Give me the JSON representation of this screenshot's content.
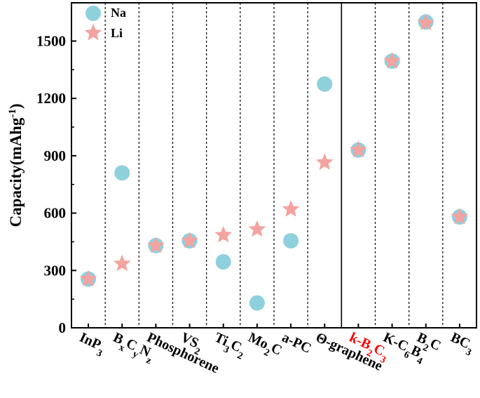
{
  "chart_data": {
    "type": "scatter",
    "ylabel": "Capacity(mAhg",
    "ylabel_sup": "-1",
    "ylabel_tail": ")",
    "ylim": [
      0,
      1700
    ],
    "yticks": [
      "0",
      "300",
      "600",
      "900",
      "1200",
      "1500"
    ],
    "ytick_values": [
      0,
      300,
      600,
      900,
      1200,
      1500
    ],
    "grid": false,
    "legend_position": "top-left",
    "categories": [
      {
        "parts": [
          {
            "t": "InP"
          },
          {
            "t": "3",
            "sub": true
          }
        ]
      },
      {
        "parts": [
          {
            "t": "B"
          },
          {
            "t": "x",
            "sub": true
          },
          {
            "t": "C"
          },
          {
            "t": "y",
            "sub": true
          },
          {
            "t": "N"
          },
          {
            "t": "z",
            "sub": true
          }
        ]
      },
      {
        "parts": [
          {
            "t": "Phosphorene"
          }
        ]
      },
      {
        "parts": [
          {
            "t": "VS"
          },
          {
            "t": "2",
            "sub": true
          }
        ]
      },
      {
        "parts": [
          {
            "t": "Ti"
          },
          {
            "t": "3",
            "sub": true
          },
          {
            "t": "C"
          },
          {
            "t": "2",
            "sub": true
          }
        ]
      },
      {
        "parts": [
          {
            "t": "Mo"
          },
          {
            "t": "2",
            "sub": true
          },
          {
            "t": "C"
          }
        ]
      },
      {
        "parts": [
          {
            "t": "a-PC"
          }
        ]
      },
      {
        "parts": [
          {
            "t": "Θ-graphene"
          }
        ]
      },
      {
        "parts": [
          {
            "t": "k-B"
          },
          {
            "t": "2",
            "sub": true
          },
          {
            "t": "C"
          },
          {
            "t": "3",
            "sub": true
          }
        ],
        "highlight": true
      },
      {
        "parts": [
          {
            "t": "K-C"
          },
          {
            "t": "6",
            "sub": true
          },
          {
            "t": "B"
          },
          {
            "t": "4",
            "sub": true
          }
        ]
      },
      {
        "parts": [
          {
            "t": "B"
          },
          {
            "t": "2",
            "sub": true
          },
          {
            "t": "C"
          }
        ]
      },
      {
        "parts": [
          {
            "t": "BC"
          },
          {
            "t": "3",
            "sub": true
          }
        ]
      }
    ],
    "separators": [
      "dashed",
      "dashed",
      "dashed",
      "dashed",
      "dashed",
      "dashed",
      "dashed",
      "solid",
      "dashed",
      "dashed",
      "dashed"
    ],
    "series": [
      {
        "name": "Na",
        "marker": "circle",
        "color": "#8fd0dd",
        "values": [
          255,
          810,
          430,
          455,
          345,
          130,
          455,
          1275,
          930,
          1395,
          1600,
          580
        ]
      },
      {
        "name": "Li",
        "marker": "star",
        "color": "#f3a3a0",
        "values": [
          255,
          335,
          430,
          455,
          485,
          515,
          620,
          865,
          930,
          1395,
          1595,
          580
        ]
      }
    ],
    "highlight_color": "#ff0000"
  }
}
